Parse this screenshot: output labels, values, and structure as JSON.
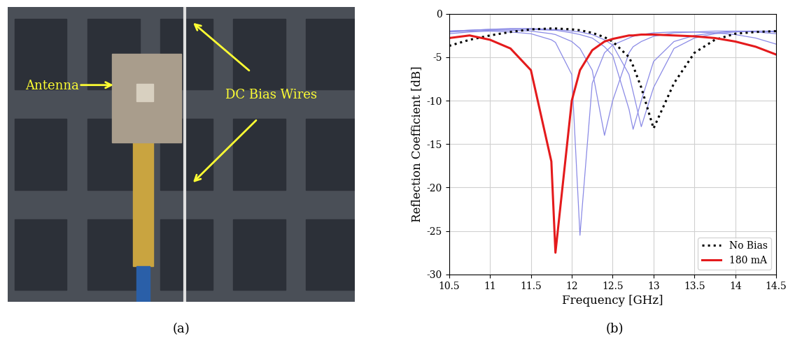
{
  "photo": {
    "antenna_label": "Antenna",
    "wires_label": "DC Bias Wires",
    "caption": "(a)"
  },
  "chart_data": {
    "type": "line",
    "caption": "(b)",
    "x_label": "Frequency [GHz]",
    "y_label": "Reflection Coefficient [dB]",
    "x": [
      10.5,
      10.75,
      11,
      11.25,
      11.5,
      11.75,
      11.8,
      12,
      12.1,
      12.25,
      12.4,
      12.5,
      12.7,
      12.75,
      12.85,
      13,
      13.25,
      13.5,
      13.75,
      14,
      14.25,
      14.5
    ],
    "series": [
      {
        "color": "#8a8ae6",
        "line_style": "solid",
        "values": [
          -2.3,
          -2.1,
          -2.0,
          -2.1,
          -2.3,
          -3.0,
          -3.3,
          -7.0,
          -25.5,
          -8.0,
          -4.5,
          -3.6,
          -2.8,
          -2.6,
          -2.4,
          -2.2,
          -2.1,
          -2.1,
          -2.2,
          -2.4,
          -2.8,
          -3.5
        ]
      },
      {
        "color": "#8a8ae6",
        "line_style": "solid",
        "values": [
          -2.1,
          -2.0,
          -1.9,
          -1.9,
          -2.0,
          -2.3,
          -2.4,
          -3.2,
          -4.0,
          -6.5,
          -14.0,
          -10.0,
          -4.5,
          -3.8,
          -3.2,
          -2.6,
          -2.2,
          -2.1,
          -2.0,
          -2.0,
          -2.1,
          -2.3
        ]
      },
      {
        "color": "#8a8ae6",
        "line_style": "solid",
        "values": [
          -2.0,
          -1.9,
          -1.8,
          -1.8,
          -1.8,
          -1.9,
          -1.9,
          -2.2,
          -2.4,
          -2.8,
          -3.8,
          -4.8,
          -11.0,
          -13.3,
          -10.0,
          -5.5,
          -3.2,
          -2.5,
          -2.2,
          -2.0,
          -2.0,
          -2.1
        ]
      },
      {
        "color": "#8a8ae6",
        "line_style": "solid",
        "values": [
          -2.0,
          -1.9,
          -1.8,
          -1.7,
          -1.7,
          -1.8,
          -1.8,
          -2.0,
          -2.1,
          -2.4,
          -3.0,
          -3.6,
          -7.0,
          -9.0,
          -13.0,
          -8.5,
          -4.0,
          -2.8,
          -2.3,
          -2.1,
          -2.0,
          -2.0
        ]
      },
      {
        "name": "No Bias",
        "color": "#000000",
        "line_style": "dotted",
        "values": [
          -3.7,
          -3.0,
          -2.5,
          -2.1,
          -1.8,
          -1.7,
          -1.7,
          -1.8,
          -1.9,
          -2.2,
          -2.7,
          -3.2,
          -5.0,
          -6.0,
          -8.5,
          -13.2,
          -8.0,
          -4.5,
          -3.0,
          -2.3,
          -2.1,
          -2.0
        ]
      },
      {
        "name": "180 mA",
        "color": "#e41a1c",
        "line_style": "solid",
        "values": [
          -2.8,
          -2.5,
          -3.0,
          -4.0,
          -6.5,
          -17.0,
          -27.5,
          -10.0,
          -6.5,
          -4.2,
          -3.2,
          -2.9,
          -2.5,
          -2.5,
          -2.4,
          -2.4,
          -2.5,
          -2.6,
          -2.8,
          -3.2,
          -3.8,
          -4.7
        ]
      }
    ],
    "xlim": [
      10.5,
      14.5
    ],
    "ylim": [
      -30,
      0
    ],
    "xticks": [
      10.5,
      11,
      11.5,
      12,
      12.5,
      13,
      13.5,
      14,
      14.5
    ],
    "yticks": [
      -30,
      -25,
      -20,
      -15,
      -10,
      -5,
      0
    ],
    "grid": true,
    "legend": "lower right"
  }
}
